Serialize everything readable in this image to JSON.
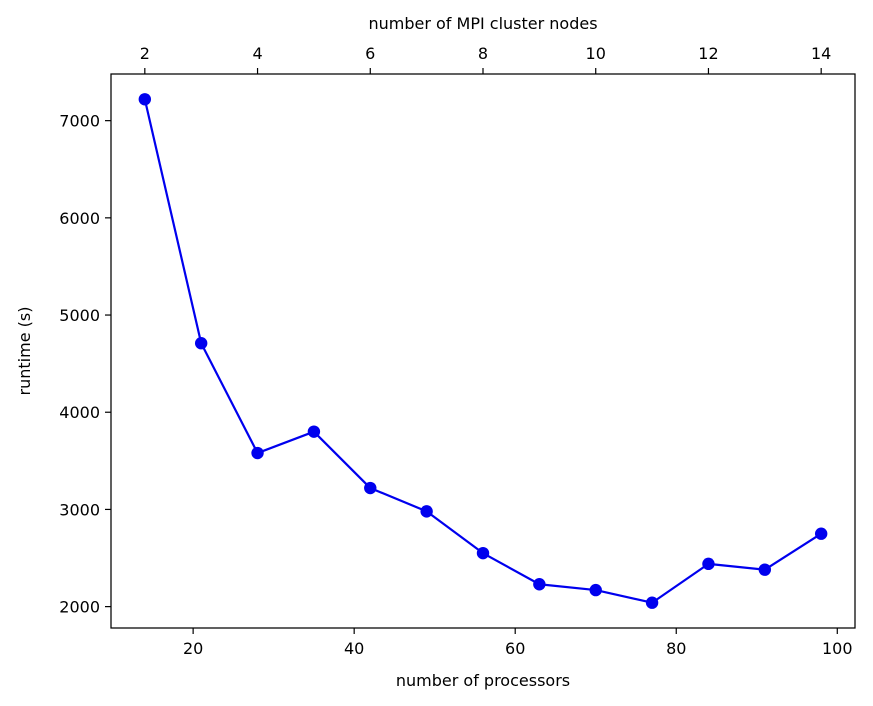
{
  "chart_data": {
    "type": "line",
    "title": "",
    "xlabel": "number of processors",
    "x2label": "number of MPI cluster nodes",
    "ylabel": "runtime (s)",
    "xlim": [
      9.8,
      102.2
    ],
    "x2lim": [
      1.4,
      14.6
    ],
    "ylim": [
      1780,
      7480
    ],
    "x_ticks": [
      20,
      40,
      60,
      80,
      100
    ],
    "x2_ticks": [
      2,
      4,
      6,
      8,
      10,
      12,
      14
    ],
    "y_ticks": [
      2000,
      3000,
      4000,
      5000,
      6000,
      7000
    ],
    "grid": false,
    "colors": {
      "series": "#0000ee"
    },
    "series": [
      {
        "x": [
          14,
          21,
          28,
          35,
          42,
          49,
          56,
          63,
          70,
          77,
          84,
          91,
          98
        ],
        "nodes": [
          2,
          3,
          4,
          5,
          6,
          7,
          8,
          9,
          10,
          11,
          12,
          13,
          14
        ],
        "values": [
          7220,
          4710,
          3580,
          3800,
          3220,
          2980,
          2550,
          2230,
          2170,
          2040,
          2440,
          2380,
          2750
        ]
      }
    ]
  }
}
